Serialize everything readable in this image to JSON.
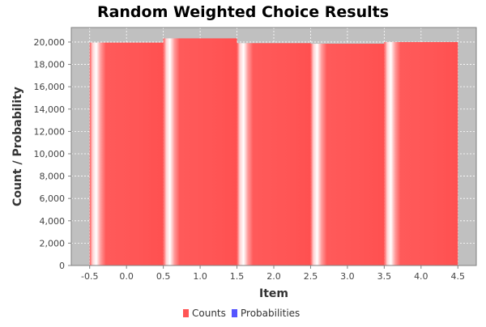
{
  "chart_data": {
    "type": "bar",
    "title": "Random Weighted Choice Results",
    "xlabel": "Item",
    "ylabel": "Count / Probability",
    "xlim": [
      -0.75,
      4.75
    ],
    "ylim": [
      0,
      21300
    ],
    "x_ticks": [
      -0.5,
      0.0,
      0.5,
      1.0,
      1.5,
      2.0,
      2.5,
      3.0,
      3.5,
      4.0,
      4.5
    ],
    "x_tick_labels": [
      "-0.5",
      "0.0",
      "0.5",
      "1.0",
      "1.5",
      "2.0",
      "2.5",
      "3.0",
      "3.5",
      "4.0",
      "4.5"
    ],
    "y_ticks": [
      0,
      2000,
      4000,
      6000,
      8000,
      10000,
      12000,
      14000,
      16000,
      18000,
      20000
    ],
    "y_tick_labels": [
      "0",
      "2,000",
      "4,000",
      "6,000",
      "8,000",
      "10,000",
      "12,000",
      "14,000",
      "16,000",
      "18,000",
      "20,000"
    ],
    "grid": true,
    "legend_position": "bottom",
    "series": [
      {
        "name": "Counts",
        "color": "#ff5555",
        "bins": [
          {
            "x_start": -0.5,
            "x_end": 0.5,
            "value": 19950
          },
          {
            "x_start": 0.5,
            "x_end": 1.5,
            "value": 20330
          },
          {
            "x_start": 1.5,
            "x_end": 2.5,
            "value": 19900
          },
          {
            "x_start": 2.5,
            "x_end": 3.5,
            "value": 19850
          },
          {
            "x_start": 3.5,
            "x_end": 4.5,
            "value": 20000
          }
        ]
      },
      {
        "name": "Probabilities",
        "color": "#5555ff",
        "bins": [
          {
            "x_start": -0.5,
            "x_end": 0.5,
            "value": 0.2
          },
          {
            "x_start": 0.5,
            "x_end": 1.5,
            "value": 0.2
          },
          {
            "x_start": 1.5,
            "x_end": 2.5,
            "value": 0.2
          },
          {
            "x_start": 2.5,
            "x_end": 3.5,
            "value": 0.2
          },
          {
            "x_start": 3.5,
            "x_end": 4.5,
            "value": 0.2
          }
        ]
      }
    ],
    "plot_background": "#c0c0c0"
  }
}
